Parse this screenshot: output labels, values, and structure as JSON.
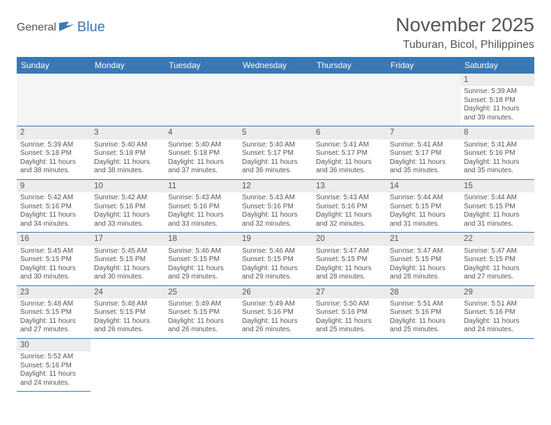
{
  "logo": {
    "part1": "General",
    "part2": "Blue",
    "flag_color": "#3a78b5"
  },
  "title": "November 2025",
  "location": "Tuburan, Bicol, Philippines",
  "colors": {
    "header_bg": "#3a78b5",
    "header_fg": "#ffffff",
    "text": "#555555",
    "daynum_bg": "#ececec",
    "blank_bg": "#f5f5f5",
    "rule": "#3a78b5"
  },
  "day_headers": [
    "Sunday",
    "Monday",
    "Tuesday",
    "Wednesday",
    "Thursday",
    "Friday",
    "Saturday"
  ],
  "weeks": [
    [
      null,
      null,
      null,
      null,
      null,
      null,
      {
        "n": 1,
        "sunrise": "5:39 AM",
        "sunset": "5:18 PM",
        "daylight": "11 hours and 39 minutes."
      }
    ],
    [
      {
        "n": 2,
        "sunrise": "5:39 AM",
        "sunset": "5:18 PM",
        "daylight": "11 hours and 38 minutes."
      },
      {
        "n": 3,
        "sunrise": "5:40 AM",
        "sunset": "5:18 PM",
        "daylight": "11 hours and 38 minutes."
      },
      {
        "n": 4,
        "sunrise": "5:40 AM",
        "sunset": "5:18 PM",
        "daylight": "11 hours and 37 minutes."
      },
      {
        "n": 5,
        "sunrise": "5:40 AM",
        "sunset": "5:17 PM",
        "daylight": "11 hours and 36 minutes."
      },
      {
        "n": 6,
        "sunrise": "5:41 AM",
        "sunset": "5:17 PM",
        "daylight": "11 hours and 36 minutes."
      },
      {
        "n": 7,
        "sunrise": "5:41 AM",
        "sunset": "5:17 PM",
        "daylight": "11 hours and 35 minutes."
      },
      {
        "n": 8,
        "sunrise": "5:41 AM",
        "sunset": "5:16 PM",
        "daylight": "11 hours and 35 minutes."
      }
    ],
    [
      {
        "n": 9,
        "sunrise": "5:42 AM",
        "sunset": "5:16 PM",
        "daylight": "11 hours and 34 minutes."
      },
      {
        "n": 10,
        "sunrise": "5:42 AM",
        "sunset": "5:16 PM",
        "daylight": "11 hours and 33 minutes."
      },
      {
        "n": 11,
        "sunrise": "5:43 AM",
        "sunset": "5:16 PM",
        "daylight": "11 hours and 33 minutes."
      },
      {
        "n": 12,
        "sunrise": "5:43 AM",
        "sunset": "5:16 PM",
        "daylight": "11 hours and 32 minutes."
      },
      {
        "n": 13,
        "sunrise": "5:43 AM",
        "sunset": "5:16 PM",
        "daylight": "11 hours and 32 minutes."
      },
      {
        "n": 14,
        "sunrise": "5:44 AM",
        "sunset": "5:15 PM",
        "daylight": "11 hours and 31 minutes."
      },
      {
        "n": 15,
        "sunrise": "5:44 AM",
        "sunset": "5:15 PM",
        "daylight": "11 hours and 31 minutes."
      }
    ],
    [
      {
        "n": 16,
        "sunrise": "5:45 AM",
        "sunset": "5:15 PM",
        "daylight": "11 hours and 30 minutes."
      },
      {
        "n": 17,
        "sunrise": "5:45 AM",
        "sunset": "5:15 PM",
        "daylight": "11 hours and 30 minutes."
      },
      {
        "n": 18,
        "sunrise": "5:46 AM",
        "sunset": "5:15 PM",
        "daylight": "11 hours and 29 minutes."
      },
      {
        "n": 19,
        "sunrise": "5:46 AM",
        "sunset": "5:15 PM",
        "daylight": "11 hours and 29 minutes."
      },
      {
        "n": 20,
        "sunrise": "5:47 AM",
        "sunset": "5:15 PM",
        "daylight": "11 hours and 28 minutes."
      },
      {
        "n": 21,
        "sunrise": "5:47 AM",
        "sunset": "5:15 PM",
        "daylight": "11 hours and 28 minutes."
      },
      {
        "n": 22,
        "sunrise": "5:47 AM",
        "sunset": "5:15 PM",
        "daylight": "11 hours and 27 minutes."
      }
    ],
    [
      {
        "n": 23,
        "sunrise": "5:48 AM",
        "sunset": "5:15 PM",
        "daylight": "11 hours and 27 minutes."
      },
      {
        "n": 24,
        "sunrise": "5:48 AM",
        "sunset": "5:15 PM",
        "daylight": "11 hours and 26 minutes."
      },
      {
        "n": 25,
        "sunrise": "5:49 AM",
        "sunset": "5:15 PM",
        "daylight": "11 hours and 26 minutes."
      },
      {
        "n": 26,
        "sunrise": "5:49 AM",
        "sunset": "5:16 PM",
        "daylight": "11 hours and 26 minutes."
      },
      {
        "n": 27,
        "sunrise": "5:50 AM",
        "sunset": "5:16 PM",
        "daylight": "11 hours and 25 minutes."
      },
      {
        "n": 28,
        "sunrise": "5:51 AM",
        "sunset": "5:16 PM",
        "daylight": "11 hours and 25 minutes."
      },
      {
        "n": 29,
        "sunrise": "5:51 AM",
        "sunset": "5:16 PM",
        "daylight": "11 hours and 24 minutes."
      }
    ],
    [
      {
        "n": 30,
        "sunrise": "5:52 AM",
        "sunset": "5:16 PM",
        "daylight": "11 hours and 24 minutes."
      },
      null,
      null,
      null,
      null,
      null,
      null
    ]
  ],
  "labels": {
    "sunrise": "Sunrise: ",
    "sunset": "Sunset: ",
    "daylight": "Daylight: "
  }
}
